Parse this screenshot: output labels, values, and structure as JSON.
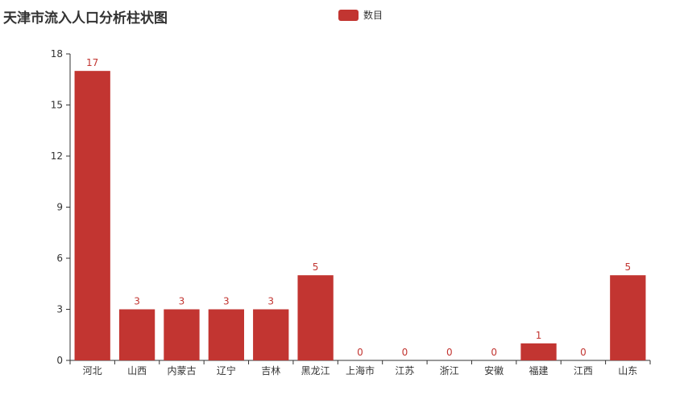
{
  "colors": {
    "bar": "#c23531",
    "axis": "#333333",
    "text": "#333333"
  },
  "chart_data": {
    "type": "bar",
    "title": "天津市流入人口分析柱状图",
    "legend": {
      "position": "top",
      "entries": [
        "数目"
      ]
    },
    "categories": [
      "河北",
      "山西",
      "内蒙古",
      "辽宁",
      "吉林",
      "黑龙江",
      "上海市",
      "江苏",
      "浙江",
      "安徽",
      "福建",
      "江西",
      "山东"
    ],
    "series": [
      {
        "name": "数目",
        "values": [
          17,
          3,
          3,
          3,
          3,
          5,
          0,
          0,
          0,
          0,
          1,
          0,
          5
        ]
      }
    ],
    "ylim": [
      0,
      18
    ],
    "yticks": [
      0,
      3,
      6,
      9,
      12,
      15,
      18
    ],
    "grid": false,
    "xlabel": "",
    "ylabel": ""
  }
}
